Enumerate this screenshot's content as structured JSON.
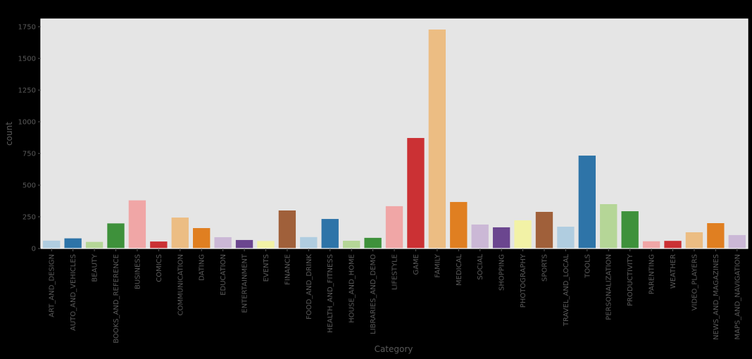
{
  "chart_data": {
    "type": "bar",
    "title": "",
    "xlabel": "Category",
    "ylabel": "count",
    "ylim": [
      0,
      1811
    ],
    "yticks": [
      0,
      250,
      500,
      750,
      1000,
      1250,
      1500,
      1750
    ],
    "grid": false,
    "legend": null,
    "categories": [
      "ART_AND_DESIGN",
      "AUTO_AND_VEHICLES",
      "BEAUTY",
      "BOOKS_AND_REFERENCE",
      "BUSINESS",
      "COMICS",
      "COMMUNICATION",
      "DATING",
      "EDUCATION",
      "ENTERTAINMENT",
      "EVENTS",
      "FINANCE",
      "FOOD_AND_DRINK",
      "HEALTH_AND_FITNESS",
      "HOUSE_AND_HOME",
      "LIBRARIES_AND_DEMO",
      "LIFESTYLE",
      "GAME",
      "FAMILY",
      "MEDICAL",
      "SOCIAL",
      "SHOPPING",
      "PHOTOGRAPHY",
      "SPORTS",
      "TRAVEL_AND_LOCAL",
      "TOOLS",
      "PERSONALIZATION",
      "PRODUCTIVITY",
      "PARENTING",
      "WEATHER",
      "VIDEO_PLAYERS",
      "NEWS_AND_MAGAZINES",
      "MAPS_AND_NAVIGATION"
    ],
    "values": [
      62,
      80,
      52,
      198,
      380,
      55,
      244,
      161,
      89,
      67,
      59,
      300,
      90,
      233,
      61,
      84,
      334,
      872,
      1728,
      367,
      189,
      167,
      222,
      289,
      172,
      733,
      350,
      294,
      57,
      60,
      128,
      200,
      106
    ],
    "palette": [
      "#b0cde0",
      "#2e74a8",
      "#b5d697",
      "#3e913b",
      "#f0a6a6",
      "#cb3134",
      "#ecbd83",
      "#e07f21",
      "#cbb8d6",
      "#6b468f",
      "#f2f2a6",
      "#a0603a"
    ]
  },
  "style": {
    "figure_bg": "#000000",
    "plot_bg": "#e5e5e5",
    "spine_color": "#ffffff",
    "text_color": "#5a5a5a"
  }
}
